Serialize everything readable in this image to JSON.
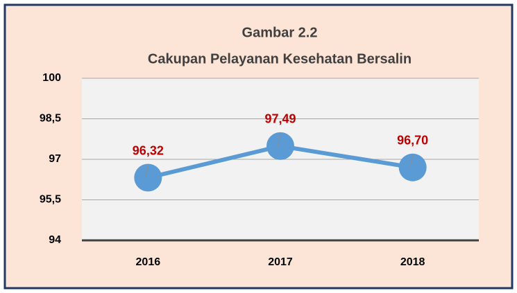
{
  "chart_data": {
    "type": "line",
    "title": "Gambar 2.2",
    "subtitle": "Cakupan Pelayanan Kesehatan Bersalin",
    "categories": [
      "2016",
      "2017",
      "2018"
    ],
    "series": [
      {
        "name": "Cakupan",
        "color": "#5b9bd5",
        "values": [
          96.32,
          97.49,
          96.7
        ],
        "value_labels": [
          "96,32",
          "97,49",
          "96,70"
        ]
      }
    ],
    "ylim": [
      94,
      100
    ],
    "yticks": [
      100,
      {
        "value": 98.5,
        "label": "98,5"
      },
      97,
      {
        "value": 95.5,
        "label": "95,5"
      },
      94
    ],
    "grid": true
  }
}
